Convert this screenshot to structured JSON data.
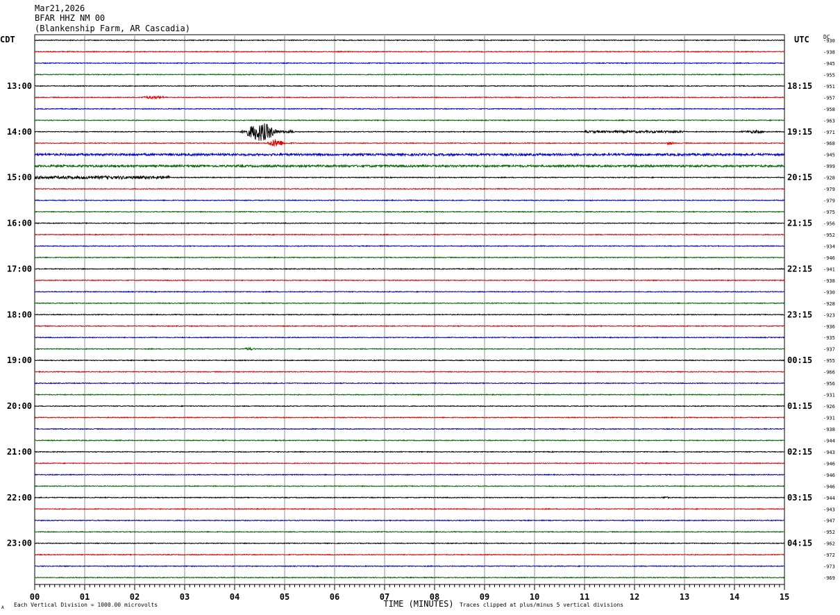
{
  "header": {
    "date": "Mar21,2026",
    "station": "BFAR HHZ NM 00",
    "location": "(Blankenship Farm, AR Cascadia)"
  },
  "left_timezone": "CDT",
  "right_timezone": "UTC",
  "dc_label": "DC",
  "chart_data": {
    "type": "line",
    "subtype": "helicorder",
    "xlabel": "TIME (MINUTES)",
    "x_ticks": [
      "00",
      "01",
      "02",
      "03",
      "04",
      "05",
      "06",
      "07",
      "08",
      "09",
      "10",
      "11",
      "12",
      "13",
      "14",
      "15"
    ],
    "xlim": [
      0,
      15
    ],
    "trace_colors": [
      "#000000",
      "#e00000",
      "#0000c8",
      "#006400"
    ],
    "left_hour_labels": [
      {
        "row": 4,
        "label": "13:00"
      },
      {
        "row": 8,
        "label": "14:00"
      },
      {
        "row": 12,
        "label": "15:00"
      },
      {
        "row": 16,
        "label": "16:00"
      },
      {
        "row": 20,
        "label": "17:00"
      },
      {
        "row": 24,
        "label": "18:00"
      },
      {
        "row": 28,
        "label": "19:00"
      },
      {
        "row": 32,
        "label": "20:00"
      },
      {
        "row": 36,
        "label": "21:00"
      },
      {
        "row": 40,
        "label": "22:00"
      },
      {
        "row": 44,
        "label": "23:00"
      }
    ],
    "right_hour_labels": [
      {
        "row": 4,
        "label": "18:15"
      },
      {
        "row": 8,
        "label": "19:15"
      },
      {
        "row": 12,
        "label": "20:15"
      },
      {
        "row": 16,
        "label": "21:15"
      },
      {
        "row": 20,
        "label": "22:15"
      },
      {
        "row": 24,
        "label": "23:15"
      },
      {
        "row": 28,
        "label": "00:15"
      },
      {
        "row": 32,
        "label": "01:15"
      },
      {
        "row": 36,
        "label": "02:15"
      },
      {
        "row": 40,
        "label": "03:15"
      },
      {
        "row": 44,
        "label": "04:15"
      }
    ],
    "dc_offsets": [
      "-930",
      "-938",
      "-945",
      "-955",
      "-951",
      "-957",
      "-958",
      "-963",
      "-971",
      "-968",
      "-945",
      "-999",
      "-928",
      "-979",
      "-979",
      "-975",
      "-956",
      "-952",
      "-934",
      "-946",
      "-941",
      "-938",
      "-930",
      "-928",
      "-923",
      "-936",
      "-935",
      "-937",
      "-955",
      "-966",
      "-956",
      "-931",
      "-926",
      "-931",
      "-938",
      "-944",
      "-943",
      "-946",
      "-946",
      "-946",
      "-944",
      "-943",
      "-947",
      "-952",
      "-962",
      "-972",
      "-973",
      "-969"
    ],
    "rows": 48,
    "events": [
      {
        "row": 5,
        "start_min": 2.0,
        "end_min": 3.0,
        "amp": 0.3
      },
      {
        "row": 8,
        "start_min": 4.1,
        "end_min": 5.2,
        "amp": 1.9
      },
      {
        "row": 8,
        "start_min": 14.0,
        "end_min": 15.0,
        "amp": 0.3
      },
      {
        "row": 8,
        "start_min": 11.0,
        "end_min": 13.0,
        "amp": 0.22
      },
      {
        "row": 9,
        "start_min": 4.6,
        "end_min": 5.2,
        "amp": 0.8
      },
      {
        "row": 9,
        "start_min": 12.6,
        "end_min": 12.9,
        "amp": 0.35
      },
      {
        "row": 10,
        "start_min": 0.0,
        "end_min": 15.0,
        "amp": 0.22
      },
      {
        "row": 11,
        "start_min": 0.0,
        "end_min": 15.0,
        "amp": 0.2
      },
      {
        "row": 12,
        "start_min": 0.0,
        "end_min": 2.7,
        "amp": 0.3
      },
      {
        "row": 27,
        "start_min": 4.1,
        "end_min": 4.6,
        "amp": 0.25
      },
      {
        "row": 40,
        "start_min": 12.5,
        "end_min": 12.8,
        "amp": 0.25
      }
    ],
    "footnote_left": "Each Vertical Division = 1000.00 microvolts",
    "footnote_right": "Traces clipped at plus/minus 5 vertical divisions"
  },
  "corner_mark": "A"
}
